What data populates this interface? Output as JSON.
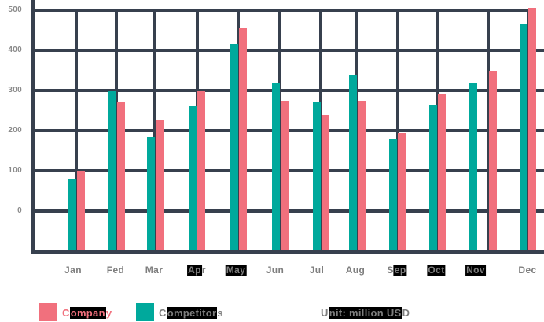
{
  "chart_data": {
    "type": "bar",
    "title": "",
    "categories": [
      "Jan",
      "Fed",
      "Mar",
      "Apr",
      "May",
      "Jun",
      "Jul",
      "Aug",
      "Sep",
      "Oct",
      "Nov",
      "Dec"
    ],
    "series": [
      {
        "name": "Company",
        "color": "#f1707d",
        "values": [
          100,
          270,
          225,
          300,
          455,
          275,
          240,
          275,
          195,
          290,
          350,
          505
        ]
      },
      {
        "name": "Competitors",
        "color": "#00a99c",
        "values": [
          80,
          300,
          185,
          260,
          415,
          320,
          270,
          340,
          180,
          265,
          320,
          465
        ]
      }
    ],
    "bar_order_left_to_right": [
      "Competitors",
      "Company"
    ],
    "y_ticks": [
      500,
      400,
      300,
      200,
      100,
      0
    ],
    "ylim": [
      0,
      500
    ],
    "xlabel": "",
    "ylabel": "",
    "unit_note": "Unit: million USD",
    "legend_position": "bottom",
    "grid": true
  },
  "axis": {
    "y_tick_labels": [
      "500",
      "400",
      "300",
      "200",
      "100",
      "0"
    ]
  },
  "months_display": [
    {
      "pre": "Jan",
      "hl": "",
      "post": ""
    },
    {
      "pre": "Fed",
      "hl": "",
      "post": ""
    },
    {
      "pre": "Mar",
      "hl": "",
      "post": ""
    },
    {
      "pre": "",
      "hl": "Ap",
      "post": "r"
    },
    {
      "pre": "",
      "hl": "May",
      "post": ""
    },
    {
      "pre": "Jun",
      "hl": "",
      "post": ""
    },
    {
      "pre": "Jul",
      "hl": "",
      "post": ""
    },
    {
      "pre": "Aug",
      "hl": "",
      "post": ""
    },
    {
      "pre": "S",
      "hl": "ep",
      "post": ""
    },
    {
      "pre": "",
      "hl": "Oct",
      "post": ""
    },
    {
      "pre": "",
      "hl": "Nov",
      "post": ""
    },
    {
      "pre": "Dec",
      "hl": "",
      "post": ""
    }
  ],
  "legend": {
    "company": {
      "pre": "C",
      "hl": "ompan",
      "post": "y",
      "color": "#f1707d"
    },
    "competitors": {
      "pre": "C",
      "hl": "ompetitor",
      "post": "s",
      "color": "#00a99c"
    }
  },
  "unit_label": {
    "pre": "U",
    "hl": "nit: million US",
    "post": "D"
  },
  "colors": {
    "company_pink": "#f1707d",
    "competitors_teal": "#00a99c",
    "gridline": "#37404e",
    "label_gray": "#7e7e7e",
    "highlight": "#000000",
    "background": "#ffffff"
  }
}
